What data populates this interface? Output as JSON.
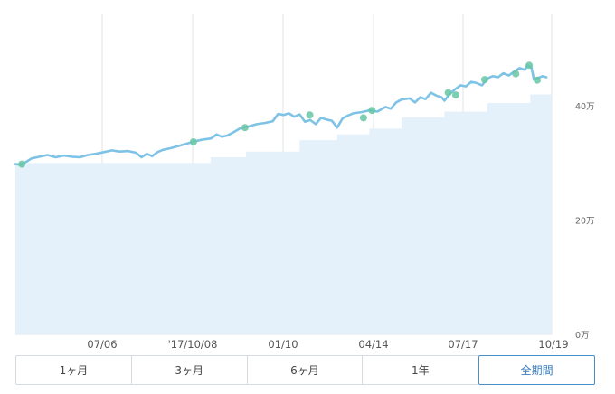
{
  "chart_data": {
    "type": "area",
    "title": "",
    "x_ticks": [
      "07/06",
      "'17/10/08",
      "01/10",
      "04/14",
      "07/17",
      "10/19"
    ],
    "y_ticks": [
      "0万",
      "20万",
      "40万"
    ],
    "y_tick_values": [
      0,
      20,
      40
    ],
    "ylim": [
      0,
      56
    ],
    "grid": "vertical",
    "series": [
      {
        "kind": "step-area",
        "values_man": [
          [
            0,
            30
          ],
          [
            0.364,
            30
          ],
          [
            0.364,
            31
          ],
          [
            0.43,
            31
          ],
          [
            0.43,
            32
          ],
          [
            0.53,
            32
          ],
          [
            0.53,
            33
          ],
          [
            0.53,
            34
          ],
          [
            0.6,
            34
          ],
          [
            0.6,
            35
          ],
          [
            0.66,
            35
          ],
          [
            0.66,
            36
          ],
          [
            0.72,
            36
          ],
          [
            0.72,
            38
          ],
          [
            0.8,
            38
          ],
          [
            0.8,
            39
          ],
          [
            0.88,
            39
          ],
          [
            0.88,
            40.5
          ],
          [
            0.96,
            40.5
          ],
          [
            0.96,
            42
          ],
          [
            1.0,
            42
          ]
        ]
      },
      {
        "kind": "line",
        "values_man": [
          [
            0.0,
            29.8
          ],
          [
            0.01,
            29.7
          ],
          [
            0.02,
            30.2
          ],
          [
            0.03,
            30.8
          ],
          [
            0.045,
            31.1
          ],
          [
            0.06,
            31.4
          ],
          [
            0.075,
            31.0
          ],
          [
            0.09,
            31.3
          ],
          [
            0.105,
            31.1
          ],
          [
            0.12,
            31.0
          ],
          [
            0.135,
            31.4
          ],
          [
            0.15,
            31.6
          ],
          [
            0.165,
            31.9
          ],
          [
            0.18,
            32.2
          ],
          [
            0.195,
            32.0
          ],
          [
            0.21,
            32.1
          ],
          [
            0.225,
            31.8
          ],
          [
            0.235,
            31.0
          ],
          [
            0.245,
            31.6
          ],
          [
            0.255,
            31.2
          ],
          [
            0.265,
            31.9
          ],
          [
            0.275,
            32.3
          ],
          [
            0.29,
            32.6
          ],
          [
            0.305,
            33.0
          ],
          [
            0.32,
            33.4
          ],
          [
            0.335,
            33.8
          ],
          [
            0.35,
            34.1
          ],
          [
            0.365,
            34.3
          ],
          [
            0.375,
            35.0
          ],
          [
            0.385,
            34.6
          ],
          [
            0.395,
            34.8
          ],
          [
            0.405,
            35.3
          ],
          [
            0.42,
            36.1
          ],
          [
            0.435,
            36.4
          ],
          [
            0.45,
            36.8
          ],
          [
            0.465,
            37.0
          ],
          [
            0.48,
            37.3
          ],
          [
            0.49,
            38.6
          ],
          [
            0.5,
            38.4
          ],
          [
            0.51,
            38.7
          ],
          [
            0.52,
            38.1
          ],
          [
            0.53,
            38.5
          ],
          [
            0.54,
            37.2
          ],
          [
            0.55,
            37.5
          ],
          [
            0.56,
            36.8
          ],
          [
            0.57,
            37.9
          ],
          [
            0.58,
            37.6
          ],
          [
            0.59,
            37.4
          ],
          [
            0.6,
            36.2
          ],
          [
            0.61,
            37.8
          ],
          [
            0.62,
            38.3
          ],
          [
            0.63,
            38.7
          ],
          [
            0.645,
            38.9
          ],
          [
            0.66,
            39.2
          ],
          [
            0.675,
            39.0
          ],
          [
            0.69,
            39.8
          ],
          [
            0.7,
            39.5
          ],
          [
            0.71,
            40.6
          ],
          [
            0.72,
            41.1
          ],
          [
            0.735,
            41.3
          ],
          [
            0.745,
            40.6
          ],
          [
            0.755,
            41.5
          ],
          [
            0.765,
            41.2
          ],
          [
            0.775,
            42.3
          ],
          [
            0.785,
            41.8
          ],
          [
            0.795,
            41.5
          ],
          [
            0.8,
            40.9
          ],
          [
            0.81,
            42.1
          ],
          [
            0.82,
            42.9
          ],
          [
            0.83,
            43.6
          ],
          [
            0.84,
            43.4
          ],
          [
            0.85,
            44.2
          ],
          [
            0.86,
            44.0
          ],
          [
            0.87,
            43.6
          ],
          [
            0.88,
            44.8
          ],
          [
            0.89,
            45.2
          ],
          [
            0.9,
            45.0
          ],
          [
            0.91,
            45.7
          ],
          [
            0.92,
            45.3
          ],
          [
            0.93,
            46.0
          ],
          [
            0.94,
            46.6
          ],
          [
            0.95,
            46.3
          ],
          [
            0.955,
            47.1
          ],
          [
            0.962,
            46.8
          ],
          [
            0.967,
            44.6
          ],
          [
            0.975,
            44.9
          ],
          [
            0.983,
            45.2
          ],
          [
            0.99,
            45.0
          ]
        ]
      }
    ],
    "markers_man": [
      [
        0.012,
        29.8
      ],
      [
        0.332,
        33.7
      ],
      [
        0.428,
        36.2
      ],
      [
        0.549,
        38.4
      ],
      [
        0.649,
        37.9
      ],
      [
        0.665,
        39.2
      ],
      [
        0.807,
        42.3
      ],
      [
        0.821,
        41.9
      ],
      [
        0.875,
        44.6
      ],
      [
        0.933,
        45.6
      ],
      [
        0.958,
        47.1
      ],
      [
        0.973,
        44.5
      ]
    ]
  },
  "period_selector": {
    "buttons": [
      "1ヶ月",
      "3ヶ月",
      "6ヶ月",
      "1年",
      "全期間"
    ],
    "active_index": 4
  },
  "colors": {
    "line": "#7ec3e6",
    "fill": "#e4f1fa",
    "marker": "#67c7a3",
    "grid": "#dfe3e7",
    "active_border": "#4a90c8"
  }
}
